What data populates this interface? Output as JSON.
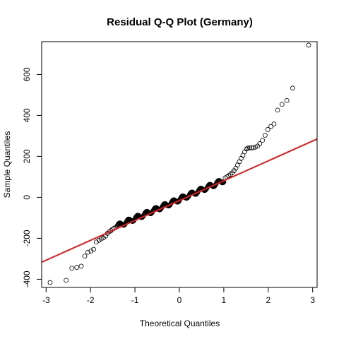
{
  "chart_data": {
    "type": "scatter",
    "title": "Residual Q-Q Plot (Germany)",
    "xlabel": "Theoretical Quantiles",
    "ylabel": "Sample Quantiles",
    "xlim": [
      -3.1,
      3.1
    ],
    "ylim": [
      -440,
      760
    ],
    "x_ticks": [
      -3,
      -2,
      -1,
      0,
      1,
      2,
      3
    ],
    "y_ticks": [
      -400,
      -200,
      0,
      200,
      400,
      600
    ],
    "grid": false,
    "legend": "none",
    "point_style": "open-circle",
    "point_color": "#000000",
    "reference_line": {
      "slope": 97,
      "intercept": -16,
      "color": "#e41a1c"
    },
    "sample_size": 1000,
    "upper_tail": [
      [
        1.03,
        95
      ],
      [
        1.07,
        100
      ],
      [
        1.11,
        106
      ],
      [
        1.15,
        112
      ],
      [
        1.19,
        120
      ],
      [
        1.23,
        130
      ],
      [
        1.27,
        142
      ],
      [
        1.31,
        158
      ],
      [
        1.35,
        174
      ],
      [
        1.39,
        190
      ],
      [
        1.43,
        205
      ],
      [
        1.47,
        222
      ],
      [
        1.51,
        236
      ],
      [
        1.54,
        240
      ],
      [
        1.58,
        241
      ],
      [
        1.62,
        242
      ],
      [
        1.66,
        242
      ],
      [
        1.71,
        245
      ],
      [
        1.76,
        250
      ],
      [
        1.81,
        262
      ],
      [
        1.87,
        278
      ],
      [
        1.93,
        303
      ],
      [
        1.99,
        331
      ],
      [
        2.06,
        346
      ],
      [
        2.13,
        358
      ],
      [
        2.21,
        426
      ],
      [
        2.31,
        454
      ],
      [
        2.42,
        473
      ],
      [
        2.55,
        533
      ],
      [
        2.91,
        743
      ]
    ],
    "lower_tail": [
      [
        -2.91,
        -416
      ],
      [
        -2.55,
        -405
      ],
      [
        -2.42,
        -346
      ],
      [
        -2.31,
        -342
      ],
      [
        -2.21,
        -336
      ],
      [
        -2.13,
        -287
      ],
      [
        -2.06,
        -268
      ],
      [
        -1.99,
        -262
      ],
      [
        -1.93,
        -254
      ],
      [
        -1.87,
        -218
      ],
      [
        -1.81,
        -210
      ],
      [
        -1.76,
        -203
      ],
      [
        -1.71,
        -198
      ],
      [
        -1.66,
        -189
      ],
      [
        -1.62,
        -176
      ],
      [
        -1.58,
        -168
      ],
      [
        -1.54,
        -163
      ],
      [
        -1.51,
        -156
      ],
      [
        -1.47,
        -151
      ],
      [
        -1.43,
        -147
      ]
    ],
    "core_segment": {
      "x_from": -1.4,
      "x_to": 1.0,
      "slope": 93,
      "intercept": -10,
      "max_offset": 10
    }
  }
}
